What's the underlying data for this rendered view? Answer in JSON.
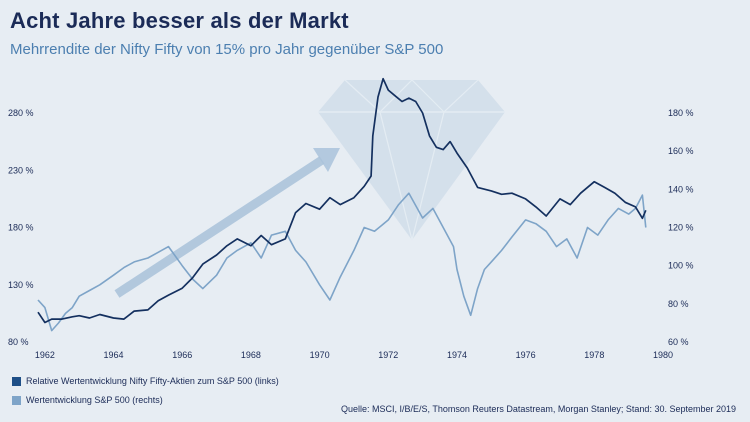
{
  "title": "Acht Jahre besser als der Markt",
  "subtitle": "Mehrrendite der Nifty Fifty von 15% pro Jahr gegenüber S&P 500",
  "legend": {
    "series1": "Relative Wertentwicklung Nifty Fifty-Aktien zum S&P 500  (links)",
    "series2": "Wertentwicklung S&P 500  (rechts)"
  },
  "source": "Quelle: MSCI, I/B/E/S, Thomson Reuters Datastream, Morgan Stanley; Stand: 30. September 2019",
  "colors": {
    "nifty": "#14305f",
    "sp500": "#7ea4c8",
    "arrow": "#a9c2da",
    "diamond": "#cddbe8",
    "background": "#e7edf3"
  },
  "chart_data": {
    "type": "line",
    "x_ticks": [
      "1962",
      "1964",
      "1966",
      "1968",
      "1970",
      "1972",
      "1974",
      "1976",
      "1978",
      "1980"
    ],
    "x_range": [
      1961.8,
      1980
    ],
    "y_left": {
      "ticks": [
        "80 %",
        "130 %",
        "180 %",
        "230 %",
        "280 %"
      ],
      "range": [
        80,
        280
      ]
    },
    "y_right": {
      "ticks": [
        "60 %",
        "80 %",
        "100 %",
        "120 %",
        "140 %",
        "160 %",
        "180 %"
      ],
      "range": [
        60,
        180
      ]
    },
    "series": [
      {
        "name": "Relative Wertentwicklung Nifty Fifty-Aktien zum S&P 500  (links)",
        "axis": "left",
        "x": [
          1961.8,
          1962.0,
          1962.2,
          1962.5,
          1962.8,
          1963.0,
          1963.3,
          1963.6,
          1964.0,
          1964.3,
          1964.6,
          1965.0,
          1965.3,
          1965.6,
          1966.0,
          1966.3,
          1966.6,
          1967.0,
          1967.3,
          1967.6,
          1968.0,
          1968.3,
          1968.6,
          1969.0,
          1969.3,
          1969.6,
          1970.0,
          1970.3,
          1970.6,
          1971.0,
          1971.3,
          1971.5,
          1971.55,
          1971.7,
          1971.85,
          1972.0,
          1972.2,
          1972.4,
          1972.6,
          1972.8,
          1973.0,
          1973.2,
          1973.4,
          1973.6,
          1973.8,
          1974.0,
          1974.3,
          1974.6,
          1975.0,
          1975.3,
          1975.6,
          1976.0,
          1976.3,
          1976.6,
          1977.0,
          1977.3,
          1977.6,
          1978.0,
          1978.3,
          1978.6,
          1978.9,
          1979.2,
          1979.4,
          1979.5
        ],
        "values": [
          106,
          97,
          100,
          100,
          102,
          103,
          101,
          104,
          101,
          100,
          107,
          108,
          116,
          121,
          127,
          136,
          148,
          156,
          164,
          170,
          164,
          173,
          165,
          170,
          193,
          201,
          196,
          206,
          200,
          206,
          216,
          225,
          260,
          294,
          310,
          300,
          295,
          290,
          293,
          290,
          280,
          260,
          250,
          248,
          255,
          245,
          232,
          215,
          212,
          209,
          210,
          205,
          198,
          190,
          205,
          200,
          210,
          220,
          215,
          210,
          202,
          198,
          188,
          195
        ]
      },
      {
        "name": "Wertentwicklung S&P 500  (rechts)",
        "axis": "right",
        "x": [
          1961.8,
          1962.0,
          1962.2,
          1962.4,
          1962.6,
          1962.8,
          1963.0,
          1963.3,
          1963.6,
          1964.0,
          1964.3,
          1964.6,
          1965.0,
          1965.3,
          1965.6,
          1966.0,
          1966.3,
          1966.6,
          1967.0,
          1967.3,
          1967.6,
          1968.0,
          1968.3,
          1968.6,
          1969.0,
          1969.3,
          1969.6,
          1970.0,
          1970.3,
          1970.6,
          1971.0,
          1971.3,
          1971.6,
          1972.0,
          1972.3,
          1972.6,
          1973.0,
          1973.3,
          1973.6,
          1973.9,
          1974.0,
          1974.2,
          1974.4,
          1974.6,
          1974.8,
          1975.0,
          1975.3,
          1975.6,
          1976.0,
          1976.3,
          1976.6,
          1976.9,
          1977.2,
          1977.5,
          1977.8,
          1978.1,
          1978.4,
          1978.7,
          1979.0,
          1979.2,
          1979.4,
          1979.5
        ],
        "values": [
          82,
          78,
          66,
          70,
          75,
          78,
          84,
          87,
          90,
          95,
          99,
          102,
          104,
          107,
          110,
          100,
          93,
          88,
          95,
          104,
          108,
          112,
          104,
          116,
          118,
          108,
          102,
          90,
          82,
          94,
          108,
          120,
          118,
          124,
          132,
          138,
          125,
          130,
          120,
          110,
          98,
          84,
          74,
          88,
          98,
          102,
          108,
          115,
          124,
          122,
          118,
          110,
          114,
          104,
          120,
          116,
          124,
          130,
          127,
          130,
          137,
          120
        ]
      }
    ],
    "grid": false,
    "legend_position": "bottom-left"
  }
}
